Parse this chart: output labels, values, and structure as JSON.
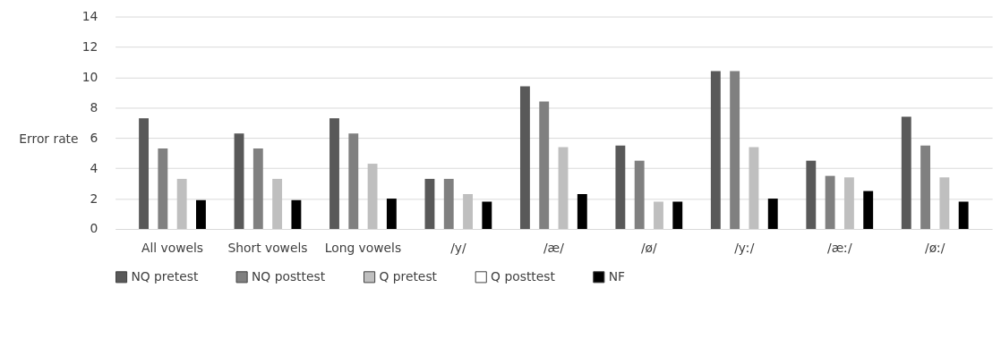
{
  "chart_data": {
    "type": "bar",
    "ylabel": "Error rate",
    "categories": [
      "All vowels",
      "Short vowels",
      "Long vowels",
      "/y/",
      "/æ/",
      "/ø/",
      "/yː/",
      "/æː/",
      "/øː/"
    ],
    "series": [
      {
        "name": "NQ pretest",
        "color": "#595959",
        "values": [
          7.3,
          6.3,
          7.3,
          3.3,
          9.4,
          5.5,
          10.4,
          4.5,
          7.4
        ]
      },
      {
        "name": "NQ posttest",
        "color": "#808080",
        "values": [
          5.3,
          5.3,
          6.3,
          3.3,
          8.4,
          4.5,
          10.4,
          3.5,
          5.5
        ]
      },
      {
        "name": "Q pretest",
        "color": "#bfbfbf",
        "values": [
          3.3,
          3.3,
          4.3,
          2.3,
          5.4,
          1.8,
          5.4,
          3.4,
          3.4
        ]
      },
      {
        "name": "Q posttest",
        "color": "#ffffff",
        "values": [
          null,
          null,
          null,
          null,
          null,
          null,
          null,
          null,
          null
        ]
      },
      {
        "name": "NF",
        "color": "#000000",
        "values": [
          1.9,
          1.9,
          2.0,
          1.8,
          2.3,
          1.8,
          2.0,
          2.5,
          1.8
        ]
      }
    ],
    "ylim": [
      0,
      14
    ],
    "yticks": [
      0,
      2,
      4,
      6,
      8,
      10,
      12,
      14
    ],
    "grid": "y",
    "legend": "bottom"
  }
}
